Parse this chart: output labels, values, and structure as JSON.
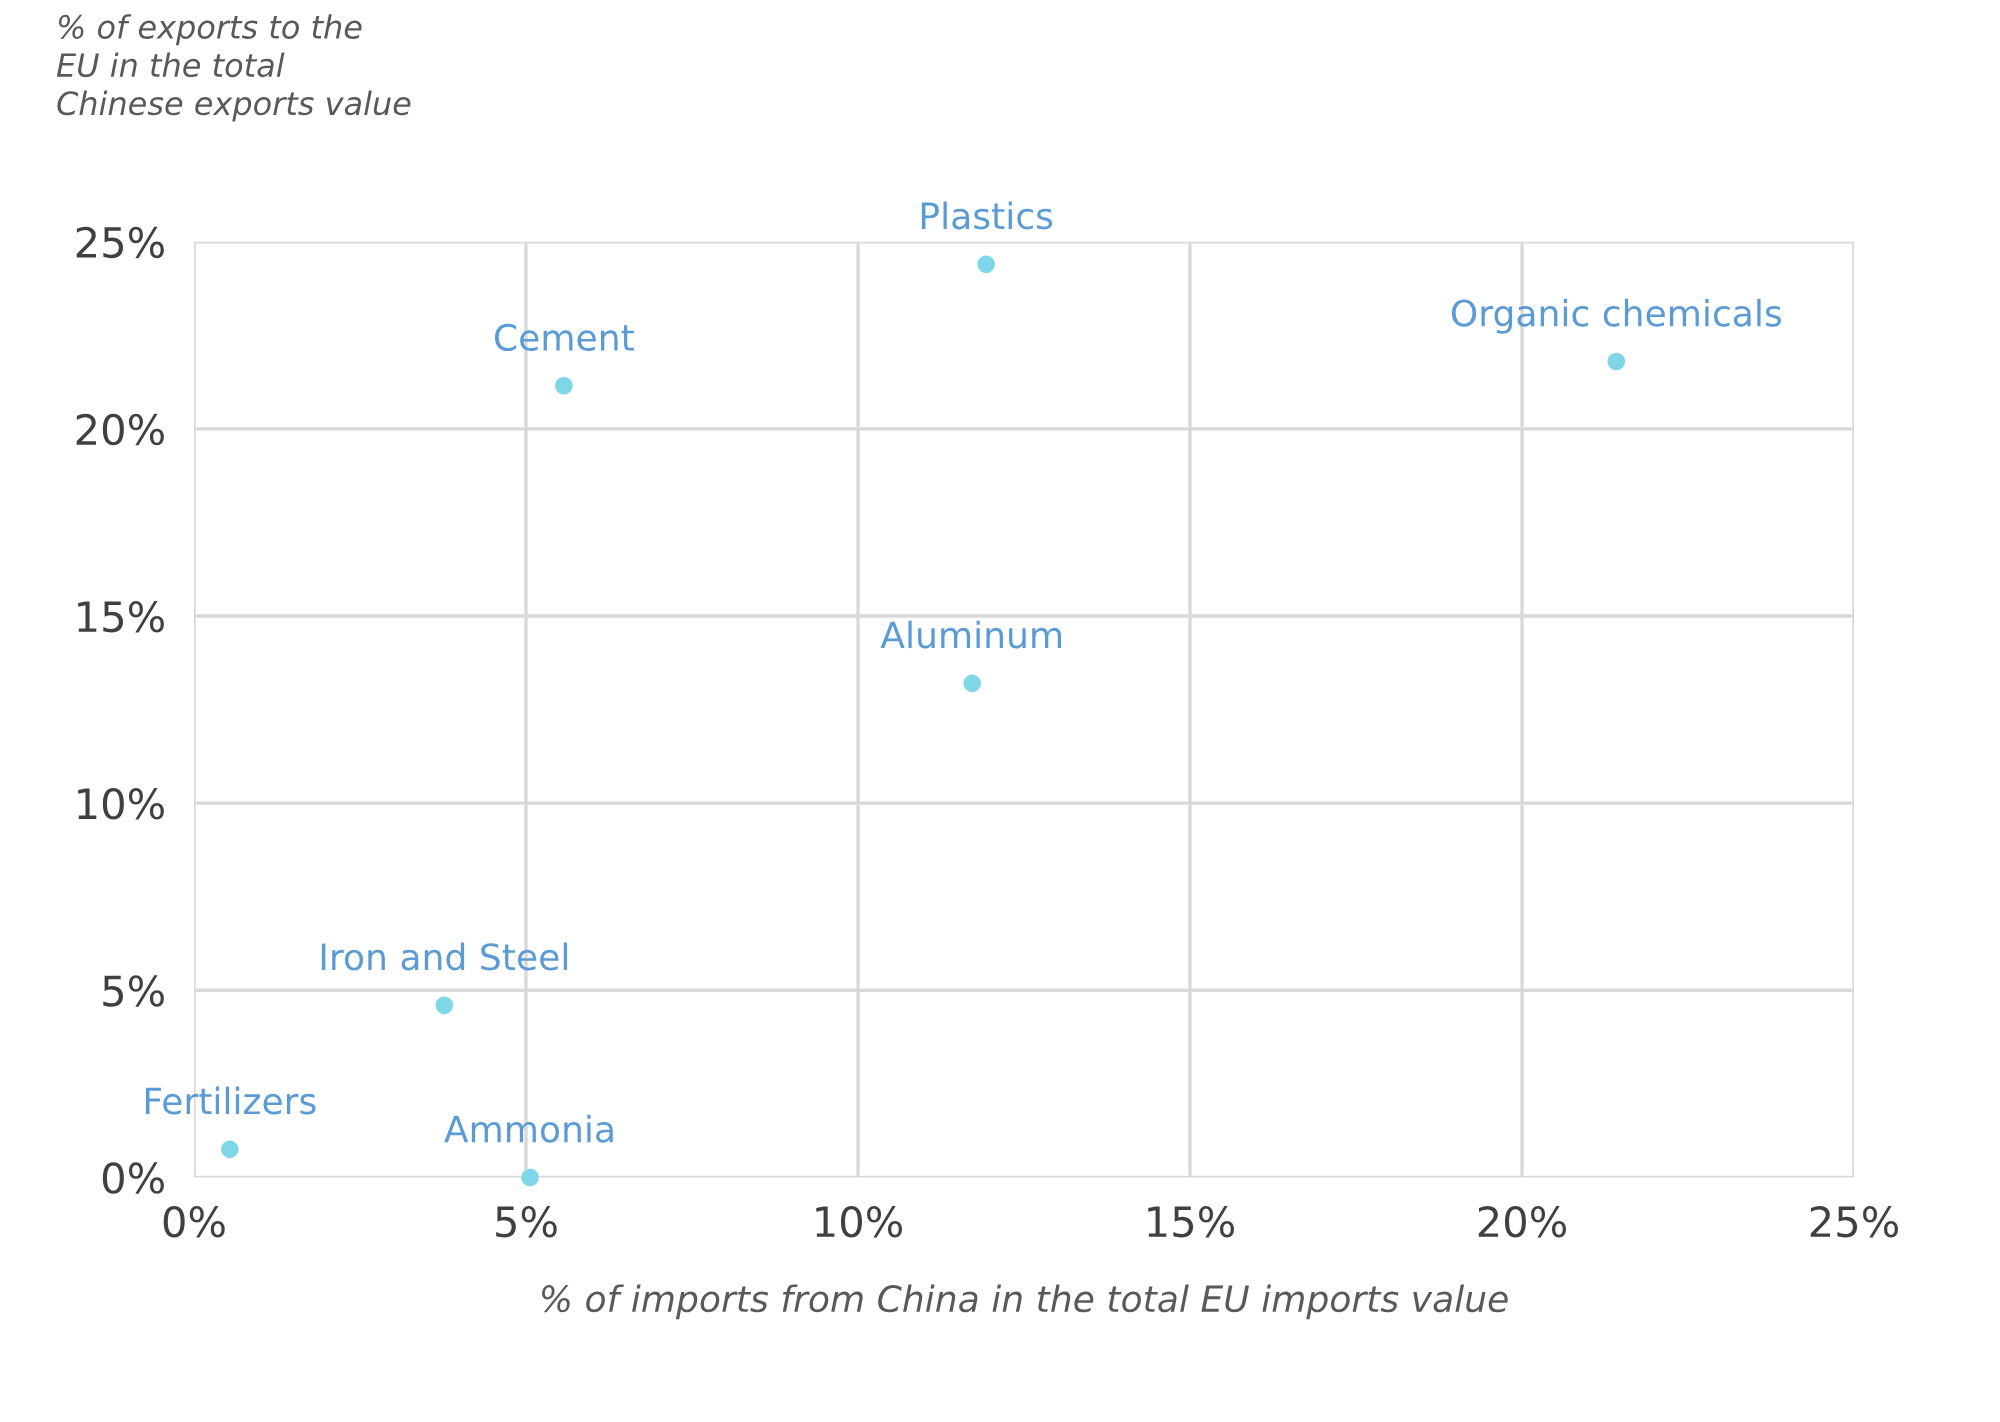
{
  "chart_data": {
    "type": "scatter",
    "xlabel": "% of imports from China in the total EU imports value",
    "ylabel": "% of exports to the\nEU in the total\nChinese exports value",
    "series": [
      {
        "color": "#7fd6e8",
        "x": [
          11.93,
          5.57,
          21.42,
          11.72,
          3.77,
          0.54,
          5.06
        ],
        "values": [
          24.4,
          21.15,
          21.8,
          13.2,
          4.6,
          0.75,
          0
        ]
      }
    ],
    "annotations": [
      {
        "text": "Plastics",
        "x": 11.93,
        "y": 24.4
      },
      {
        "text": "Cement",
        "x": 5.57,
        "y": 21.15
      },
      {
        "text": "Organic chemicals",
        "x": 21.42,
        "y": 21.8
      },
      {
        "text": "Aluminum",
        "x": 11.72,
        "y": 13.2
      },
      {
        "text": "Iron and Steel",
        "x": 3.77,
        "y": 4.6
      },
      {
        "text": "Fertilizers",
        "x": 0.54,
        "y": 0.75
      },
      {
        "text": "Ammonia",
        "x": 5.06,
        "y": 0
      }
    ],
    "xlim": [
      0,
      25
    ],
    "ylim": [
      0,
      25
    ],
    "xticks": [
      {
        "value": 0,
        "label": "0%"
      },
      {
        "value": 5,
        "label": "5%"
      },
      {
        "value": 10,
        "label": "10%"
      },
      {
        "value": 15,
        "label": "15%"
      },
      {
        "value": 20,
        "label": "20%"
      },
      {
        "value": 25,
        "label": "25%"
      }
    ],
    "yticks": [
      {
        "value": 0,
        "label": "0%"
      },
      {
        "value": 5,
        "label": "5%"
      },
      {
        "value": 10,
        "label": "10%"
      },
      {
        "value": 15,
        "label": "15%"
      },
      {
        "value": 20,
        "label": "20%"
      },
      {
        "value": 25,
        "label": "25%"
      }
    ],
    "grid": true,
    "marker": "circle",
    "legend": false
  }
}
